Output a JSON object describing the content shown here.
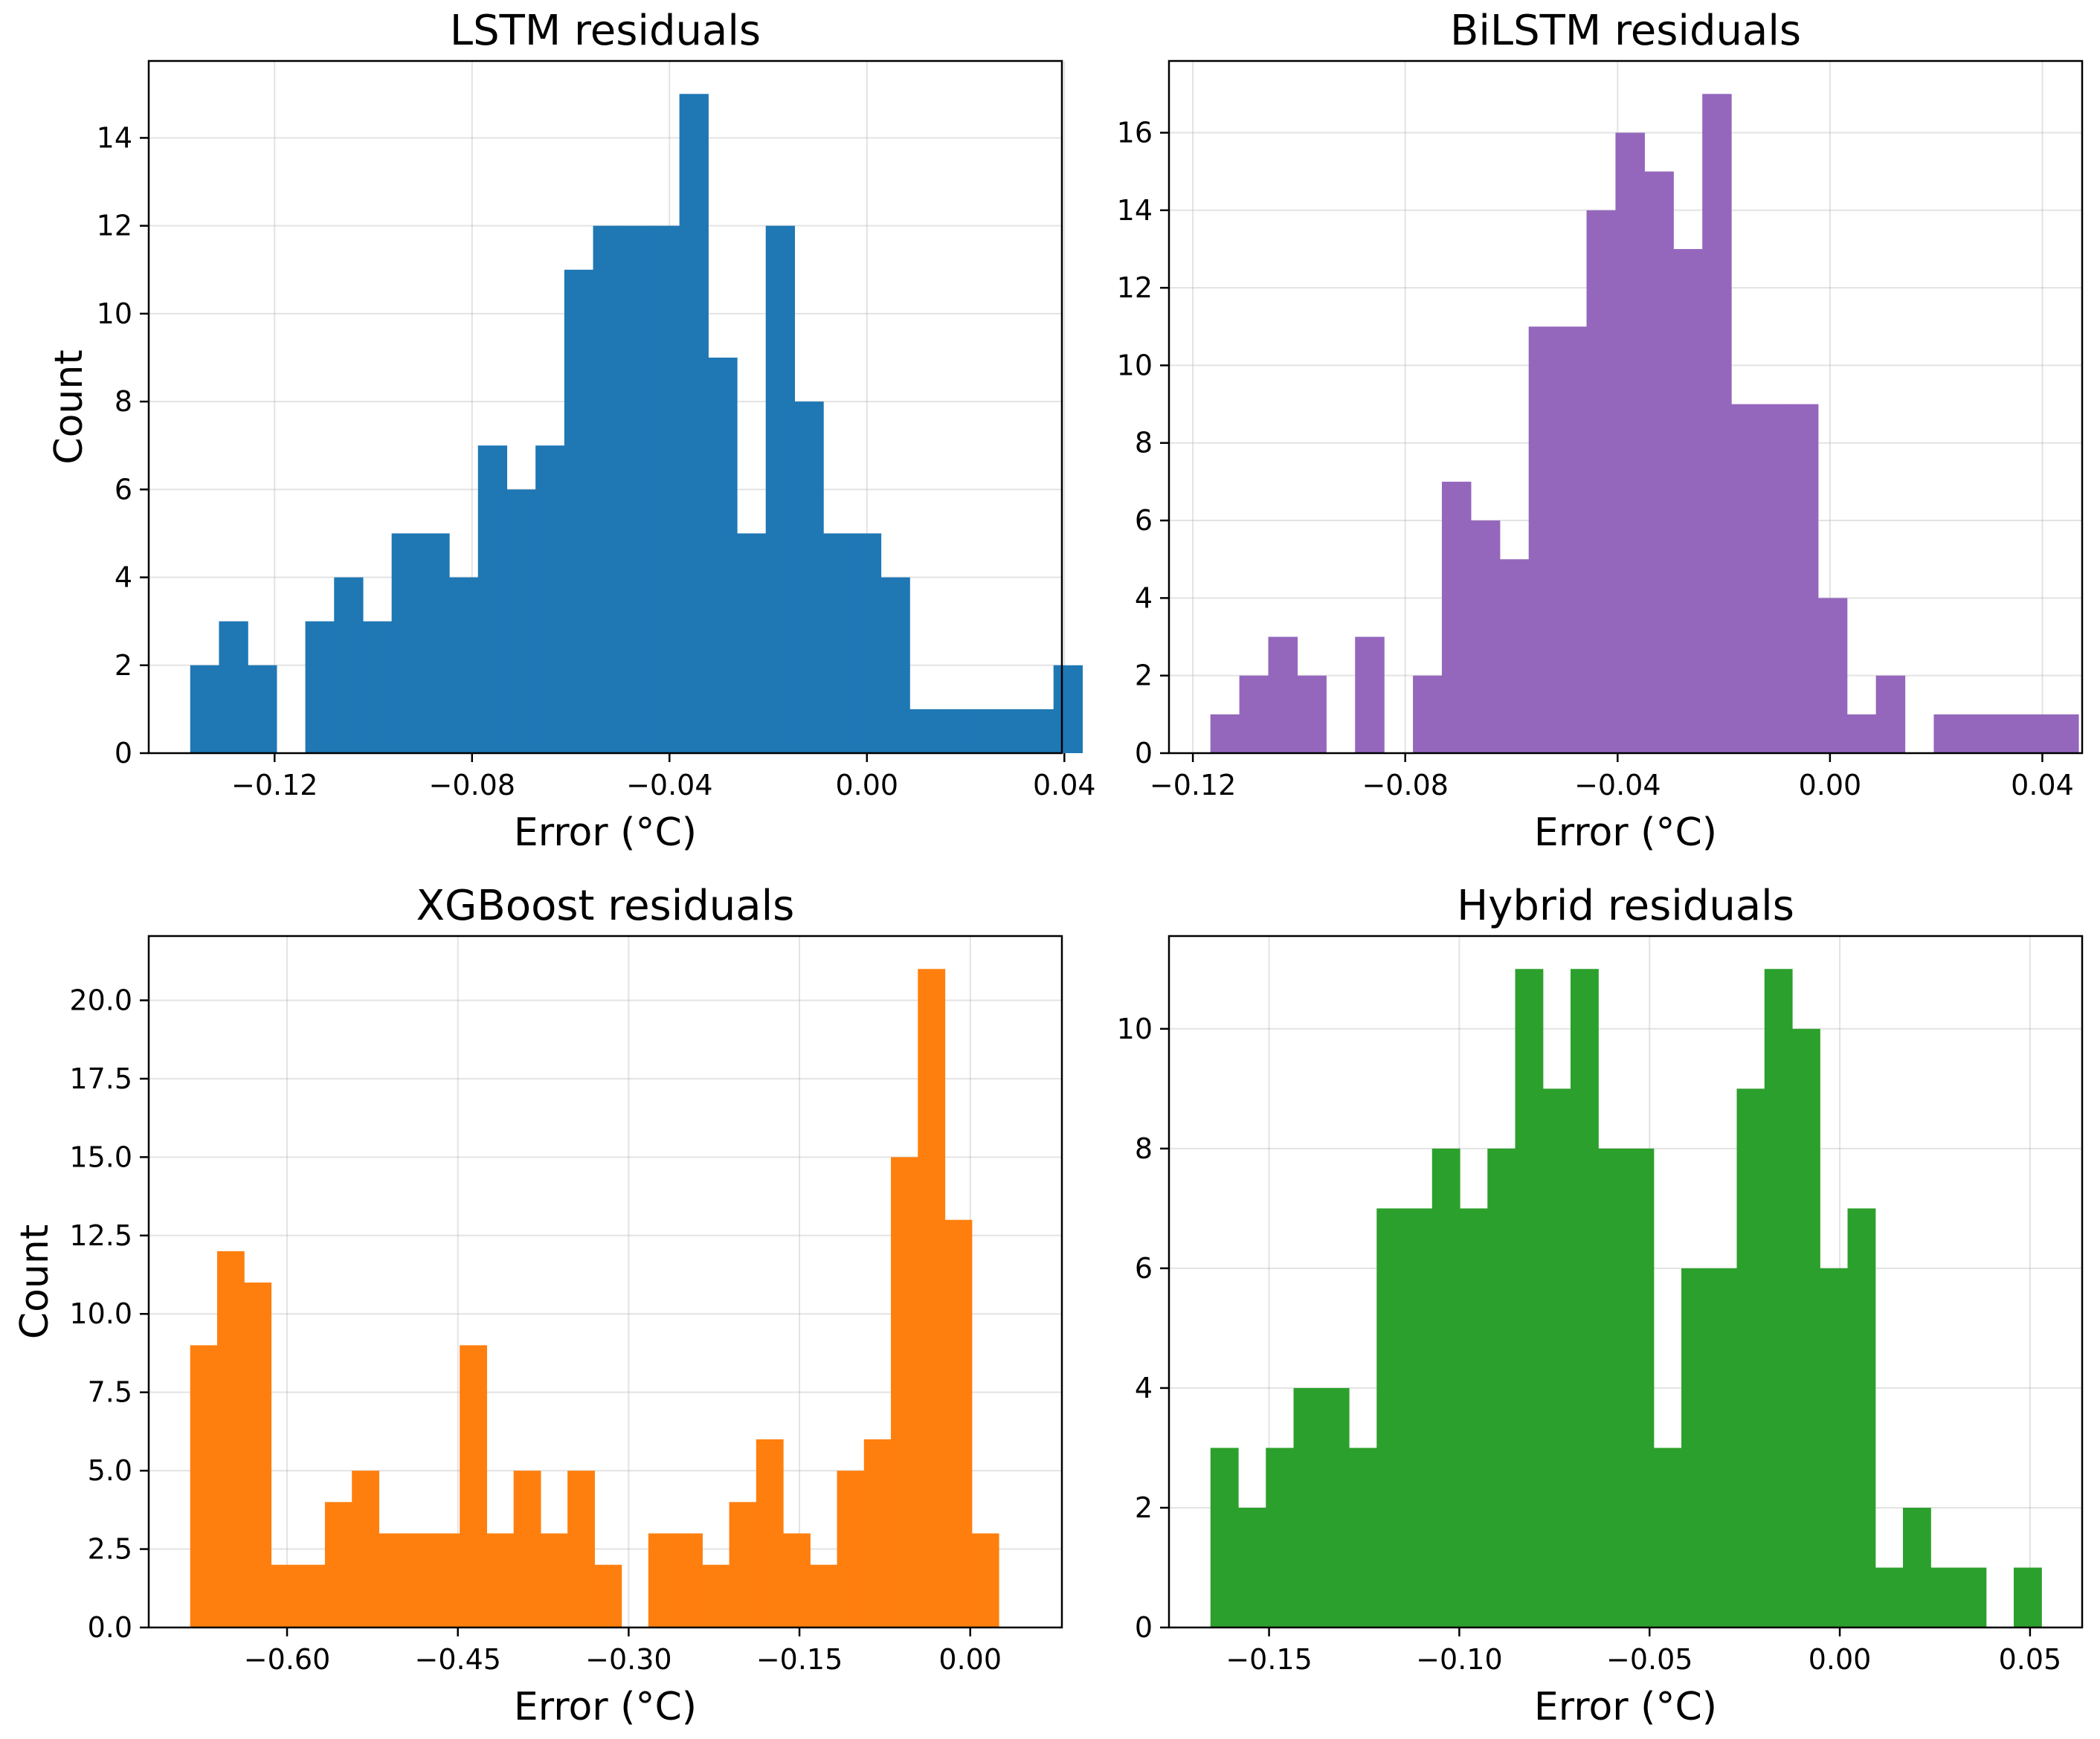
{
  "chart_data": [
    {
      "type": "bar",
      "title": "LSTM residuals",
      "xlabel": "Error (°C)",
      "ylabel": "Count",
      "color": "#1f77b4",
      "grid": true,
      "xlim": [
        -0.1455,
        0.0395
      ],
      "ylim": [
        0,
        15.75
      ],
      "xticks": [
        -0.12,
        -0.08,
        -0.04,
        0.0,
        0.04
      ],
      "xtick_labels": [
        "−0.12",
        "−0.08",
        "−0.04",
        "0.00",
        "0.04"
      ],
      "yticks": [
        0,
        2,
        4,
        6,
        8,
        10,
        12,
        14
      ],
      "ytick_labels": [
        "0",
        "2",
        "4",
        "6",
        "8",
        "10",
        "12",
        "14"
      ],
      "bin_start": -0.1371,
      "bin_width": 0.00583,
      "counts": [
        2,
        3,
        2,
        0,
        3,
        4,
        3,
        5,
        5,
        4,
        7,
        6,
        7,
        11,
        12,
        12,
        12,
        15,
        9,
        5,
        12,
        8,
        5,
        5,
        4,
        1,
        1,
        1,
        1,
        1,
        2
      ]
    },
    {
      "type": "bar",
      "title": "BiLSTM residuals",
      "xlabel": "Error (°C)",
      "ylabel": "",
      "color": "#9467bd",
      "grid": true,
      "xlim": [
        -0.1245,
        0.0475
      ],
      "ylim": [
        0,
        17.85
      ],
      "xticks": [
        -0.12,
        -0.08,
        -0.04,
        0.0,
        0.04
      ],
      "xtick_labels": [
        "−0.12",
        "−0.08",
        "−0.04",
        "0.00",
        "0.04"
      ],
      "yticks": [
        0,
        2,
        4,
        6,
        8,
        10,
        12,
        14,
        16
      ],
      "ytick_labels": [
        "0",
        "2",
        "4",
        "6",
        "8",
        "10",
        "12",
        "14",
        "16"
      ],
      "bin_start": -0.1167,
      "bin_width": 0.00545,
      "counts": [
        1,
        2,
        3,
        2,
        0,
        3,
        0,
        2,
        7,
        6,
        5,
        11,
        11,
        14,
        16,
        15,
        13,
        17,
        9,
        9,
        9,
        4,
        1,
        2,
        0,
        1,
        1,
        1,
        1,
        1
      ]
    },
    {
      "type": "bar",
      "title": "XGBoost residuals",
      "xlabel": "Error (°C)",
      "ylabel": "Count",
      "color": "#ff7f0e",
      "grid": true,
      "xlim": [
        -0.7215,
        0.0805
      ],
      "ylim": [
        0,
        22.05
      ],
      "xticks": [
        -0.6,
        -0.45,
        -0.3,
        -0.15,
        0.0
      ],
      "xtick_labels": [
        "−0.60",
        "−0.45",
        "−0.30",
        "−0.15",
        "0.00"
      ],
      "yticks": [
        0,
        2.5,
        5,
        7.5,
        10,
        12.5,
        15,
        17.5,
        20
      ],
      "ytick_labels": [
        "0.0",
        "2.5",
        "5.0",
        "7.5",
        "10.0",
        "12.5",
        "15.0",
        "17.5",
        "20.0"
      ],
      "bin_start": -0.6851,
      "bin_width": 0.02367,
      "counts": [
        9,
        12,
        11,
        2,
        2,
        4,
        5,
        3,
        3,
        3,
        9,
        3,
        5,
        3,
        5,
        2,
        0,
        3,
        3,
        2,
        4,
        6,
        3,
        2,
        5,
        6,
        15,
        21,
        13,
        3
      ]
    },
    {
      "type": "bar",
      "title": "Hybrid residuals",
      "xlabel": "Error (°C)",
      "ylabel": "",
      "color": "#2ca02c",
      "grid": true,
      "xlim": [
        -0.1763,
        0.0637
      ],
      "ylim": [
        0,
        11.55
      ],
      "xticks": [
        -0.15,
        -0.1,
        -0.05,
        0.0,
        0.05
      ],
      "xtick_labels": [
        "−0.15",
        "−0.10",
        "−0.05",
        "0.00",
        "0.05"
      ],
      "yticks": [
        0,
        2,
        4,
        6,
        8,
        10
      ],
      "ytick_labels": [
        "0",
        "2",
        "4",
        "6",
        "8",
        "10"
      ],
      "bin_start": -0.1654,
      "bin_width": 0.00728,
      "counts": [
        3,
        2,
        3,
        4,
        4,
        3,
        7,
        7,
        8,
        7,
        8,
        11,
        9,
        11,
        8,
        8,
        3,
        6,
        6,
        9,
        11,
        10,
        6,
        7,
        1,
        2,
        1,
        1,
        0,
        1
      ]
    }
  ]
}
